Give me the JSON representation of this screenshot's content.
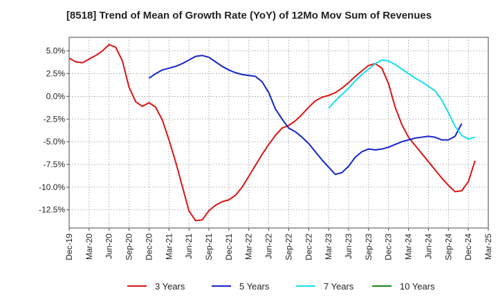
{
  "chart_data": {
    "type": "line",
    "title": "[8518]  Trend of Mean of Growth Rate (YoY) of 12Mo Mov Sum of Revenues",
    "xlabel": "",
    "ylabel": "",
    "ylim": [
      -14.5,
      6.5
    ],
    "y_ticks": [
      5.0,
      2.5,
      0.0,
      -2.5,
      -5.0,
      -7.5,
      -10.0,
      -12.5
    ],
    "y_tick_labels": [
      "5.0%",
      "2.5%",
      "0.0%",
      "-2.5%",
      "-5.0%",
      "-7.5%",
      "-10.0%",
      "-12.5%"
    ],
    "x_tick_labels": [
      "Dec-19",
      "Mar-20",
      "Jun-20",
      "Sep-20",
      "Dec-20",
      "Mar-21",
      "Jun-21",
      "Sep-21",
      "Dec-21",
      "Mar-22",
      "Jun-22",
      "Sep-22",
      "Dec-22",
      "Mar-23",
      "Jun-23",
      "Sep-23",
      "Dec-23",
      "Mar-24",
      "Jun-24",
      "Sep-24",
      "Dec-24",
      "Mar-25"
    ],
    "x_range_months": [
      0,
      63
    ],
    "grid": true,
    "legend_position": "bottom",
    "series": [
      {
        "name": "3 Years",
        "color": "#dd1111",
        "start_month": 0,
        "values": [
          4.2,
          3.8,
          3.7,
          4.1,
          4.5,
          5.0,
          5.7,
          5.4,
          3.9,
          1.0,
          -0.6,
          -1.1,
          -0.7,
          -1.2,
          -2.6,
          -4.8,
          -7.2,
          -9.9,
          -12.6,
          -13.7,
          -13.6,
          -12.6,
          -12.0,
          -11.6,
          -11.4,
          -10.9,
          -10.0,
          -8.8,
          -7.6,
          -6.4,
          -5.3,
          -4.3,
          -3.5,
          -3.2,
          -2.7,
          -2.0,
          -1.2,
          -0.5,
          -0.1,
          0.1,
          0.4,
          0.9,
          1.5,
          2.2,
          2.8,
          3.4,
          3.6,
          3.1,
          1.4,
          -1.2,
          -3.1,
          -4.5,
          -5.4,
          -6.3,
          -7.2,
          -8.1,
          -9.0,
          -9.8,
          -10.5,
          -10.4,
          -9.4,
          -7.1
        ]
      },
      {
        "name": "5 Years",
        "color": "#1122cc",
        "start_month": 12,
        "values": [
          2.0,
          2.5,
          2.9,
          3.1,
          3.3,
          3.6,
          4.0,
          4.4,
          4.5,
          4.3,
          3.8,
          3.3,
          2.9,
          2.6,
          2.4,
          2.3,
          2.2,
          1.6,
          0.4,
          -1.4,
          -2.5,
          -3.5,
          -3.9,
          -4.5,
          -5.2,
          -6.1,
          -7.0,
          -7.8,
          -8.6,
          -8.4,
          -7.7,
          -6.7,
          -6.1,
          -5.8,
          -5.9,
          -5.8,
          -5.6,
          -5.3,
          -5.0,
          -4.8,
          -4.6,
          -4.5,
          -4.4,
          -4.5,
          -4.8,
          -4.8,
          -4.4,
          -3.0
        ]
      },
      {
        "name": "7 Years",
        "color": "#11ddee",
        "start_month": 39,
        "values": [
          -1.3,
          -0.5,
          0.2,
          0.9,
          1.7,
          2.4,
          3.0,
          3.6,
          4.0,
          3.9,
          3.5,
          3.0,
          2.5,
          2.0,
          1.6,
          1.1,
          0.6,
          -0.4,
          -1.8,
          -3.3,
          -4.3,
          -4.7,
          -4.5
        ]
      },
      {
        "name": "10 Years",
        "color": "#118811",
        "start_month": 0,
        "values": []
      }
    ]
  }
}
